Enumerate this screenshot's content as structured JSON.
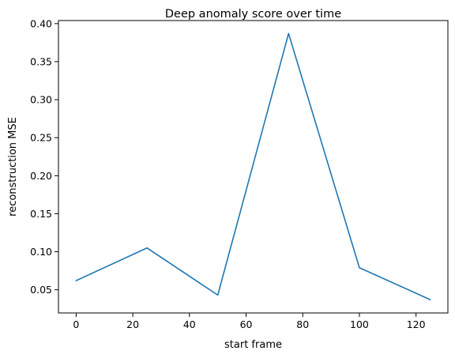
{
  "chart_data": {
    "type": "line",
    "title": "Deep anomaly score over time",
    "xlabel": "start frame",
    "ylabel": "reconstruction MSE",
    "xlim": [
      -6.25,
      131.25
    ],
    "ylim": [
      0.0195,
      0.404
    ],
    "xticks": [
      0,
      20,
      40,
      60,
      80,
      100,
      120
    ],
    "xtick_labels": [
      "0",
      "20",
      "40",
      "60",
      "80",
      "100",
      "120"
    ],
    "yticks": [
      0.05,
      0.1,
      0.15,
      0.2,
      0.25,
      0.3,
      0.35,
      0.4
    ],
    "ytick_labels": [
      "0.05",
      "0.10",
      "0.15",
      "0.20",
      "0.25",
      "0.30",
      "0.35",
      "0.40"
    ],
    "grid": false,
    "series": [
      {
        "color": "#1f77b4",
        "x": [
          0,
          25,
          50,
          75,
          100,
          125
        ],
        "y": [
          0.062,
          0.105,
          0.043,
          0.387,
          0.079,
          0.037
        ]
      }
    ]
  }
}
